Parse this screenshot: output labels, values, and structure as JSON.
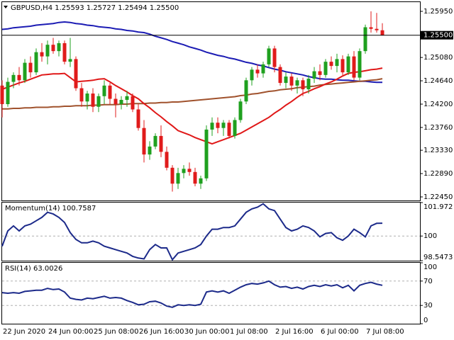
{
  "chart_data": [
    {
      "type": "candlestick",
      "title": "GBPUSD,H4  1.25593 1.25727 1.25494 1.25500",
      "categories": [
        "22 Jun 2020",
        null,
        null,
        null,
        null,
        null,
        null,
        null,
        "24 Jun 00:00",
        null,
        null,
        null,
        null,
        null,
        null,
        null,
        "25 Jun 08:00",
        null,
        null,
        null,
        null,
        null,
        null,
        null,
        "26 Jun 16:00",
        null,
        null,
        null,
        null,
        null,
        null,
        null,
        "30 Jun 00:00",
        null,
        null,
        null,
        null,
        null,
        null,
        null,
        "1 Jul 08:00",
        null,
        null,
        null,
        null,
        null,
        null,
        null,
        "2 Jul 16:00",
        null,
        null,
        null,
        null,
        null,
        null,
        null,
        "6 Jul 00:00",
        null,
        null,
        null,
        null,
        null,
        null,
        null,
        "7 Jul 08:00",
        null,
        null,
        null
      ],
      "open": [
        1.2455,
        1.242,
        1.2462,
        1.2475,
        1.2465,
        1.2498,
        1.248,
        1.2518,
        1.251,
        1.2532,
        1.252,
        1.2535,
        1.25,
        1.2505,
        1.245,
        1.2425,
        1.244,
        1.2415,
        1.2435,
        1.2455,
        1.243,
        1.242,
        1.2428,
        1.2435,
        1.241,
        1.2375,
        1.2325,
        1.234,
        1.236,
        1.233,
        1.23,
        1.227,
        1.229,
        1.2298,
        1.2292,
        1.227,
        1.228,
        1.2372,
        1.2385,
        1.2375,
        1.2385,
        1.236,
        1.239,
        1.2425,
        1.2465,
        1.2485,
        1.2478,
        1.2495,
        1.2525,
        1.249,
        1.246,
        1.2472,
        1.2455,
        1.2465,
        1.2448,
        1.2468,
        1.2482,
        1.2475,
        1.25,
        1.2492,
        1.2505,
        1.248,
        1.251,
        1.247,
        1.252,
        1.2565,
        1.2562,
        1.25593
      ],
      "high": [
        1.2465,
        1.247,
        1.248,
        1.249,
        1.2505,
        1.251,
        1.2525,
        1.2535,
        1.254,
        1.2545,
        1.254,
        1.254,
        1.2545,
        1.251,
        1.246,
        1.2445,
        1.245,
        1.244,
        1.2465,
        1.246,
        1.244,
        1.2435,
        1.2445,
        1.244,
        1.242,
        1.239,
        1.235,
        1.2365,
        1.238,
        1.234,
        1.2305,
        1.23,
        1.2305,
        1.231,
        1.23,
        1.2285,
        1.238,
        1.2395,
        1.2395,
        1.239,
        1.239,
        1.2395,
        1.243,
        1.247,
        1.249,
        1.2495,
        1.25,
        1.253,
        1.253,
        1.2495,
        1.248,
        1.2478,
        1.247,
        1.247,
        1.2475,
        1.249,
        1.2495,
        1.2505,
        1.251,
        1.2515,
        1.2512,
        1.2515,
        1.252,
        1.2525,
        1.257,
        1.2595,
        1.2592,
        1.25727
      ],
      "low": [
        1.2395,
        1.2415,
        1.245,
        1.2455,
        1.246,
        1.247,
        1.2475,
        1.25,
        1.2495,
        1.2515,
        1.251,
        1.2495,
        1.249,
        1.2445,
        1.2415,
        1.241,
        1.2405,
        1.2405,
        1.242,
        1.242,
        1.2395,
        1.241,
        1.2415,
        1.2405,
        1.237,
        1.231,
        1.2315,
        1.2335,
        1.232,
        1.2295,
        1.2255,
        1.226,
        1.228,
        1.2285,
        1.2265,
        1.226,
        1.2275,
        1.236,
        1.2365,
        1.236,
        1.2355,
        1.2355,
        1.2385,
        1.242,
        1.2455,
        1.247,
        1.247,
        1.249,
        1.248,
        1.2455,
        1.245,
        1.2445,
        1.244,
        1.2435,
        1.244,
        1.246,
        1.2465,
        1.247,
        1.2485,
        1.248,
        1.2475,
        1.2475,
        1.2465,
        1.2465,
        1.2515,
        1.2555,
        1.2555,
        1.25494
      ],
      "close": [
        1.242,
        1.2462,
        1.2475,
        1.2465,
        1.2498,
        1.248,
        1.2518,
        1.251,
        1.2532,
        1.252,
        1.2535,
        1.25,
        1.2505,
        1.245,
        1.2425,
        1.244,
        1.2415,
        1.2435,
        1.2455,
        1.243,
        1.242,
        1.2428,
        1.2435,
        1.241,
        1.2375,
        1.2325,
        1.234,
        1.236,
        1.233,
        1.23,
        1.227,
        1.229,
        1.2298,
        1.2292,
        1.227,
        1.228,
        1.2372,
        1.2385,
        1.2375,
        1.2385,
        1.236,
        1.239,
        1.2425,
        1.2465,
        1.2485,
        1.2478,
        1.2495,
        1.2525,
        1.249,
        1.246,
        1.2472,
        1.2455,
        1.2465,
        1.2448,
        1.2468,
        1.2482,
        1.2475,
        1.25,
        1.2492,
        1.2505,
        1.248,
        1.251,
        1.247,
        1.252,
        1.2565,
        1.2562,
        1.25593,
        1.255
      ],
      "up_color": "#1fa01f",
      "down_color": "#e01b1b",
      "series": [
        {
          "color": "#1c1cb4",
          "values": [
            1.2561,
            1.2562,
            1.2564,
            1.2565,
            1.2566,
            1.2567,
            1.2569,
            1.257,
            1.2571,
            1.2572,
            1.2574,
            1.2575,
            1.2574,
            1.2572,
            1.2571,
            1.2569,
            1.2568,
            1.2566,
            1.2565,
            1.2564,
            1.2562,
            1.2561,
            1.2559,
            1.2558,
            1.2556,
            1.2555,
            1.2552,
            1.2548,
            1.2545,
            1.2542,
            1.2538,
            1.2535,
            1.2532,
            1.2528,
            1.2525,
            1.2522,
            1.2518,
            1.2515,
            1.2512,
            1.251,
            1.2507,
            1.2505,
            1.2502,
            1.2499,
            1.2497,
            1.2494,
            1.2492,
            1.2489,
            1.2486,
            1.2484,
            1.2481,
            1.2479,
            1.2477,
            1.2475,
            1.2472,
            1.247,
            1.2468,
            1.2467,
            1.2467,
            1.2466,
            1.2465,
            1.2465,
            1.2464,
            1.2463,
            1.2463,
            1.2462,
            1.2461,
            1.2461
          ]
        },
        {
          "color": "#a0522d",
          "values": [
            1.2411,
            1.2411,
            1.2412,
            1.2412,
            1.2413,
            1.2413,
            1.2414,
            1.2414,
            1.2414,
            1.2415,
            1.2415,
            1.2416,
            1.2416,
            1.2417,
            1.2417,
            1.2417,
            1.2418,
            1.2418,
            1.2419,
            1.2419,
            1.2419,
            1.242,
            1.242,
            1.2421,
            1.2421,
            1.2421,
            1.2422,
            1.2422,
            1.2423,
            1.2423,
            1.2424,
            1.2424,
            1.2425,
            1.2426,
            1.2427,
            1.2428,
            1.2429,
            1.243,
            1.2431,
            1.2432,
            1.2433,
            1.2434,
            1.2436,
            1.2437,
            1.2439,
            1.244,
            1.2442,
            1.2444,
            1.2445,
            1.2447,
            1.2448,
            1.2449,
            1.2451,
            1.2452,
            1.2453,
            1.2454,
            1.2456,
            1.2457,
            1.2458,
            1.2459,
            1.246,
            1.2461,
            1.2462,
            1.2463,
            1.2464,
            1.2465,
            1.2466,
            1.2468
          ]
        },
        {
          "color": "#e01818",
          "values": [
            1.2448,
            1.2452,
            1.2456,
            1.246,
            1.2463,
            1.2467,
            1.2471,
            1.2475,
            1.2476,
            1.2477,
            1.2477,
            1.2478,
            1.247,
            1.2462,
            1.2463,
            1.2464,
            1.2465,
            1.2467,
            1.2468,
            1.2462,
            1.2455,
            1.2449,
            1.2443,
            1.2436,
            1.243,
            1.2421,
            1.2413,
            1.2404,
            1.2396,
            1.2387,
            1.2379,
            1.237,
            1.2366,
            1.2362,
            1.2357,
            1.2353,
            1.2349,
            1.2345,
            1.2349,
            1.2353,
            1.2357,
            1.2361,
            1.2365,
            1.2371,
            1.2377,
            1.2383,
            1.2389,
            1.2395,
            1.2403,
            1.241,
            1.2418,
            1.2425,
            1.2433,
            1.244,
            1.2444,
            1.2449,
            1.2453,
            1.2458,
            1.2462,
            1.2467,
            1.2473,
            1.2478,
            1.248,
            1.2481,
            1.2483,
            1.2485,
            1.2486,
            1.2488
          ]
        }
      ],
      "ylim": [
        1.22383,
        1.26124
      ],
      "yticks": [
        {
          "value": 1.2595,
          "label": "1.25950"
        },
        {
          "value": 1.2508,
          "label": "1.25080"
        },
        {
          "value": 1.2464,
          "label": "1.24640"
        },
        {
          "value": 1.242,
          "label": "1.24200"
        },
        {
          "value": 1.2376,
          "label": "1.23760"
        },
        {
          "value": 1.2333,
          "label": "1.23330"
        },
        {
          "value": 1.2289,
          "label": "1.22890"
        },
        {
          "value": 1.2245,
          "label": "1.22450"
        }
      ],
      "price_label": {
        "value": 1.255,
        "label": "1.25500"
      }
    },
    {
      "type": "line",
      "title": "Momentum(14) 100.7587",
      "color": "#1c2a8a",
      "values": [
        99.4,
        100.3,
        100.6,
        100.3,
        100.6,
        100.7,
        100.9,
        101.1,
        101.4,
        101.3,
        101.1,
        100.8,
        100.2,
        99.8,
        99.6,
        99.6,
        99.7,
        99.6,
        99.4,
        99.3,
        99.2,
        99.1,
        99.0,
        98.8,
        98.7,
        98.65,
        99.2,
        99.5,
        99.3,
        99.3,
        98.6,
        99.0,
        99.1,
        99.2,
        99.3,
        99.5,
        100.0,
        100.4,
        100.4,
        100.5,
        100.5,
        100.6,
        101.0,
        101.4,
        101.6,
        101.7,
        101.9,
        101.6,
        101.5,
        101.0,
        100.5,
        100.3,
        100.4,
        100.6,
        100.5,
        100.3,
        99.95,
        100.15,
        100.2,
        99.9,
        99.75,
        100.0,
        100.4,
        100.2,
        99.95,
        100.6,
        100.75,
        100.7587
      ],
      "ylim": [
        98.5473,
        101.972
      ],
      "yticks": [
        101.972,
        100,
        98.5473
      ],
      "levels": [
        100
      ]
    },
    {
      "type": "line",
      "title": "RSI(14) 63.0026",
      "color": "#1c2a8a",
      "values": [
        51,
        50,
        51,
        50,
        53,
        54,
        55,
        55,
        58,
        56,
        57,
        52,
        42,
        40,
        39,
        42,
        41,
        43,
        45,
        42,
        43,
        42,
        38,
        35,
        31,
        32,
        36,
        37,
        34,
        29,
        27,
        31,
        30,
        31,
        30,
        32,
        52,
        54,
        52,
        54,
        50,
        55,
        60,
        64,
        66,
        65,
        67,
        70,
        64,
        60,
        61,
        58,
        60,
        57,
        61,
        63,
        61,
        64,
        62,
        64,
        59,
        63,
        54,
        63,
        66,
        68,
        65,
        63.0026
      ],
      "ylim": [
        0,
        100
      ],
      "yticks": [
        100,
        70,
        30,
        0
      ],
      "levels": [
        70,
        30
      ]
    }
  ]
}
